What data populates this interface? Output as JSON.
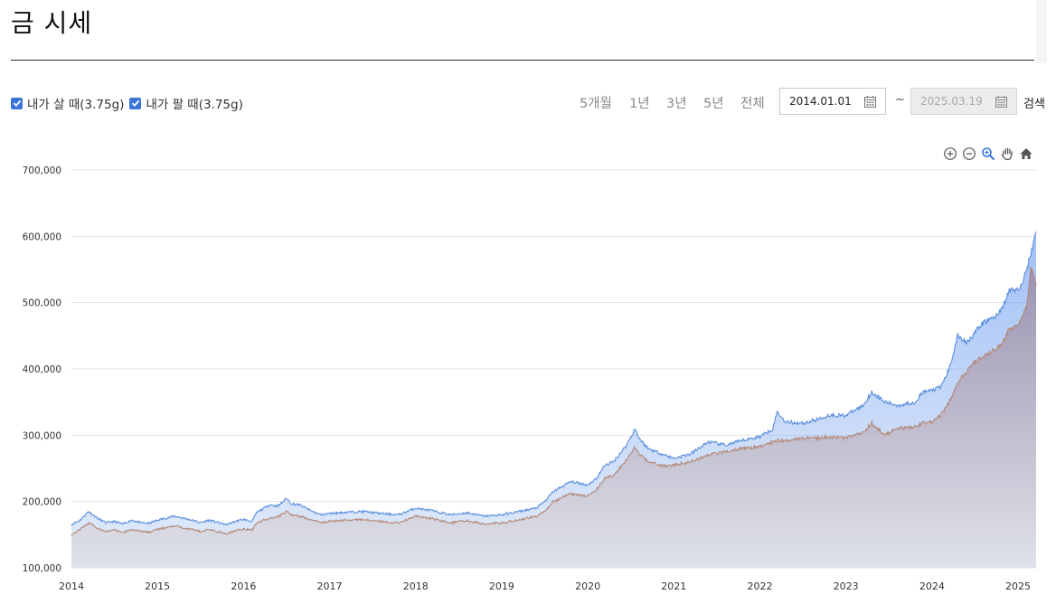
{
  "page": {
    "title": "금 시세"
  },
  "legend": {
    "items": [
      {
        "label": "내가 살 때(3.75g)",
        "color": "#5b8fdd",
        "checked": true
      },
      {
        "label": "내가 팔 때(3.75g)",
        "color": "#b48a78",
        "checked": true
      }
    ]
  },
  "toolbar": {
    "periods": [
      "5개월",
      "1년",
      "3년",
      "5년",
      "전체"
    ],
    "start_date": "2014.01.01",
    "end_date": "2025.03.19",
    "tilde": "~",
    "search_label": "검색"
  },
  "chart_tools": [
    "zoom-in-icon",
    "zoom-out-icon",
    "magnifier-icon",
    "pan-hand-icon",
    "home-icon"
  ],
  "chart_data": {
    "type": "area",
    "x_ticks": [
      "2014",
      "2015",
      "2016",
      "2017",
      "2018",
      "2019",
      "2020",
      "2021",
      "2022",
      "2023",
      "2024",
      "2025"
    ],
    "y_ticks": [
      "100,000",
      "200,000",
      "300,000",
      "400,000",
      "500,000",
      "600,000",
      "700,000"
    ],
    "ylim": [
      100000,
      700000
    ],
    "xlim": [
      2014.0,
      2025.21
    ],
    "grid": true,
    "series": [
      {
        "name": "내가 살 때(3.75g)",
        "color": "#5b8fdd",
        "x": [
          2014.0,
          2014.1,
          2014.2,
          2014.3,
          2014.4,
          2014.5,
          2014.6,
          2014.7,
          2014.8,
          2014.9,
          2015.0,
          2015.2,
          2015.4,
          2015.5,
          2015.6,
          2015.8,
          2015.9,
          2016.0,
          2016.1,
          2016.15,
          2016.3,
          2016.4,
          2016.5,
          2016.55,
          2016.65,
          2016.8,
          2016.9,
          2017.0,
          2017.2,
          2017.4,
          2017.6,
          2017.8,
          2018.0,
          2018.2,
          2018.4,
          2018.6,
          2018.8,
          2019.0,
          2019.2,
          2019.4,
          2019.5,
          2019.6,
          2019.8,
          2020.0,
          2020.1,
          2020.2,
          2020.3,
          2020.45,
          2020.55,
          2020.6,
          2020.7,
          2020.9,
          2021.0,
          2021.2,
          2021.4,
          2021.6,
          2021.8,
          2022.0,
          2022.15,
          2022.2,
          2022.3,
          2022.5,
          2022.7,
          2022.8,
          2023.0,
          2023.2,
          2023.3,
          2023.45,
          2023.6,
          2023.8,
          2023.9,
          2024.0,
          2024.1,
          2024.2,
          2024.3,
          2024.4,
          2024.5,
          2024.6,
          2024.75,
          2024.85,
          2024.9,
          2025.0,
          2025.05,
          2025.1,
          2025.15,
          2025.21
        ],
        "values": [
          165000,
          172000,
          185000,
          175000,
          168000,
          170000,
          166000,
          172000,
          168000,
          167000,
          172000,
          178000,
          172000,
          168000,
          172000,
          165000,
          170000,
          173000,
          170000,
          183000,
          195000,
          193000,
          205000,
          197000,
          195000,
          185000,
          180000,
          182000,
          184000,
          185000,
          182000,
          180000,
          190000,
          186000,
          180000,
          183000,
          178000,
          180000,
          185000,
          190000,
          200000,
          215000,
          230000,
          225000,
          235000,
          255000,
          260000,
          285000,
          310000,
          295000,
          280000,
          270000,
          265000,
          272000,
          290000,
          285000,
          292000,
          298000,
          310000,
          335000,
          320000,
          318000,
          325000,
          330000,
          330000,
          345000,
          365000,
          350000,
          345000,
          350000,
          365000,
          368000,
          372000,
          400000,
          450000,
          440000,
          455000,
          470000,
          480000,
          500000,
          520000,
          518000,
          530000,
          550000,
          575000,
          607000
        ]
      },
      {
        "name": "내가 팔 때(3.75g)",
        "color": "#b48a78",
        "x": [
          2014.0,
          2014.1,
          2014.2,
          2014.3,
          2014.4,
          2014.5,
          2014.6,
          2014.7,
          2014.8,
          2014.9,
          2015.0,
          2015.2,
          2015.4,
          2015.5,
          2015.6,
          2015.8,
          2015.9,
          2016.0,
          2016.1,
          2016.15,
          2016.3,
          2016.4,
          2016.5,
          2016.55,
          2016.65,
          2016.8,
          2016.9,
          2017.0,
          2017.2,
          2017.4,
          2017.6,
          2017.8,
          2018.0,
          2018.2,
          2018.4,
          2018.6,
          2018.8,
          2019.0,
          2019.2,
          2019.4,
          2019.5,
          2019.6,
          2019.8,
          2020.0,
          2020.1,
          2020.2,
          2020.3,
          2020.45,
          2020.55,
          2020.6,
          2020.7,
          2020.9,
          2021.0,
          2021.2,
          2021.4,
          2021.6,
          2021.8,
          2022.0,
          2022.15,
          2022.2,
          2022.3,
          2022.5,
          2022.7,
          2022.8,
          2023.0,
          2023.2,
          2023.3,
          2023.45,
          2023.6,
          2023.8,
          2023.9,
          2024.0,
          2024.1,
          2024.2,
          2024.3,
          2024.4,
          2024.5,
          2024.6,
          2024.75,
          2024.85,
          2024.9,
          2025.0,
          2025.05,
          2025.1,
          2025.15,
          2025.21
        ],
        "values": [
          150000,
          158000,
          168000,
          160000,
          155000,
          157000,
          153000,
          158000,
          155000,
          154000,
          158000,
          163000,
          158000,
          155000,
          158000,
          151000,
          156000,
          159000,
          157000,
          168000,
          175000,
          177000,
          185000,
          180000,
          178000,
          172000,
          168000,
          170000,
          172000,
          173000,
          170000,
          168000,
          178000,
          174000,
          168000,
          171000,
          166000,
          168000,
          172000,
          178000,
          185000,
          200000,
          212000,
          208000,
          218000,
          235000,
          240000,
          262000,
          282000,
          272000,
          260000,
          253000,
          255000,
          260000,
          270000,
          275000,
          280000,
          283000,
          290000,
          292000,
          292000,
          295000,
          296000,
          298000,
          295000,
          305000,
          318000,
          300000,
          310000,
          312000,
          318000,
          320000,
          330000,
          350000,
          380000,
          395000,
          410000,
          420000,
          430000,
          445000,
          460000,
          465000,
          480000,
          495000,
          555000,
          525000
        ]
      }
    ]
  }
}
